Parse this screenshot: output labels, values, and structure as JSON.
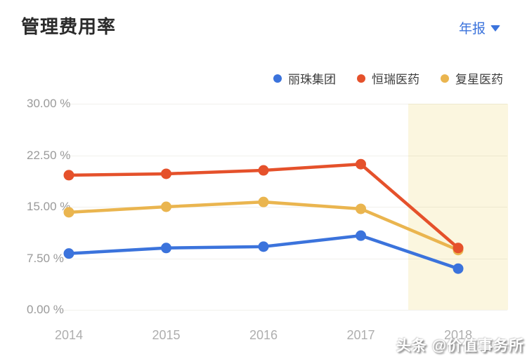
{
  "header": {
    "period_label": "年报"
  },
  "chart_data": {
    "type": "line",
    "title": "管理费用率",
    "x": [
      "2014",
      "2015",
      "2016",
      "2017",
      "2018"
    ],
    "series": [
      {
        "name": "丽珠集团",
        "color": "#3B73DC",
        "values": [
          8.2,
          9.0,
          9.2,
          10.8,
          6.0
        ]
      },
      {
        "name": "恒瑞医药",
        "color": "#E5512B",
        "values": [
          19.6,
          19.8,
          20.3,
          21.2,
          9.0
        ]
      },
      {
        "name": "复星医药",
        "color": "#EAB54F",
        "values": [
          14.2,
          15.0,
          15.7,
          14.7,
          8.7
        ]
      }
    ],
    "yticks": [
      {
        "label": "30.00 %",
        "value": 30
      },
      {
        "label": "22.50 %",
        "value": 22.5
      },
      {
        "label": "15.00 %",
        "value": 15
      },
      {
        "label": "7.50 %",
        "value": 7.5
      },
      {
        "label": "0.00 %",
        "value": 0
      }
    ],
    "ylim": [
      0,
      30
    ],
    "unit": "%",
    "grid": true,
    "legend_position": "top-right",
    "highlight": {
      "category": "2018",
      "color": "#FBF6DF"
    }
  },
  "watermark": {
    "text": "头条 @价值事务所"
  }
}
